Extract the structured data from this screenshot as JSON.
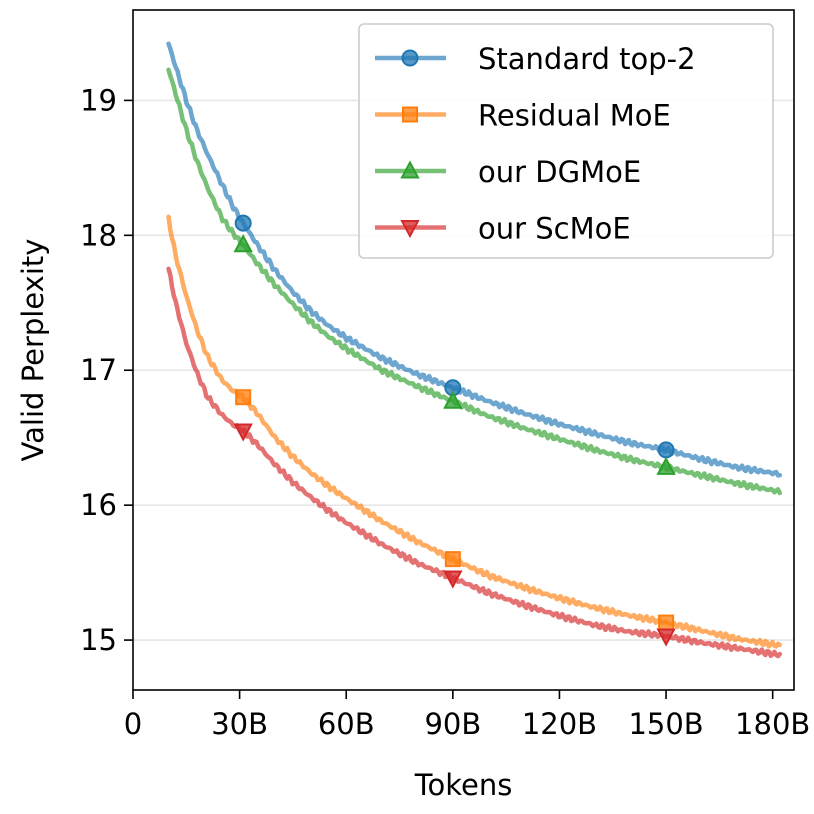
{
  "chart_data": {
    "type": "line",
    "title": "",
    "xlabel": "Tokens",
    "ylabel": "Valid Perplexity",
    "xlim": [
      0,
      186
    ],
    "ylim": [
      14.63,
      19.67
    ],
    "x_ticks": [
      {
        "value": 0,
        "label": "0"
      },
      {
        "value": 30,
        "label": "30B"
      },
      {
        "value": 60,
        "label": "60B"
      },
      {
        "value": 90,
        "label": "90B"
      },
      {
        "value": 120,
        "label": "120B"
      },
      {
        "value": 150,
        "label": "150B"
      },
      {
        "value": 180,
        "label": "180B"
      }
    ],
    "y_ticks": [
      {
        "value": 15,
        "label": "15"
      },
      {
        "value": 16,
        "label": "16"
      },
      {
        "value": 17,
        "label": "17"
      },
      {
        "value": 18,
        "label": "18"
      },
      {
        "value": 19,
        "label": "19"
      }
    ],
    "grid": "horizontal",
    "legend_position": "top-right",
    "marker_x": [
      31,
      90,
      150
    ],
    "series": [
      {
        "name": "Standard top-2",
        "color": "#1f77b4",
        "marker": "circle",
        "x": [
          10,
          12,
          15,
          18,
          21,
          25,
          28,
          31,
          35,
          40,
          45,
          50,
          55,
          60,
          70,
          80,
          90,
          100,
          110,
          120,
          130,
          140,
          150,
          160,
          170,
          182
        ],
        "y": [
          19.42,
          19.25,
          19.0,
          18.78,
          18.6,
          18.38,
          18.22,
          18.09,
          17.93,
          17.74,
          17.58,
          17.44,
          17.33,
          17.24,
          17.09,
          16.97,
          16.87,
          16.77,
          16.68,
          16.6,
          16.53,
          16.46,
          16.41,
          16.34,
          16.28,
          16.23
        ]
      },
      {
        "name": "Residual MoE",
        "color": "#ff7f0e",
        "marker": "square",
        "x": [
          10,
          12,
          15,
          18,
          21,
          25,
          28,
          31,
          35,
          40,
          45,
          50,
          55,
          60,
          70,
          80,
          90,
          100,
          110,
          120,
          130,
          140,
          150,
          160,
          170,
          182
        ],
        "y": [
          18.12,
          17.85,
          17.55,
          17.3,
          17.1,
          16.93,
          16.85,
          16.8,
          16.68,
          16.5,
          16.36,
          16.24,
          16.14,
          16.05,
          15.88,
          15.73,
          15.6,
          15.48,
          15.39,
          15.31,
          15.24,
          15.18,
          15.13,
          15.07,
          15.01,
          14.96
        ]
      },
      {
        "name": "our DGMoE",
        "color": "#2ca02c",
        "marker": "triangle-up",
        "x": [
          10,
          12,
          15,
          18,
          21,
          25,
          28,
          31,
          35,
          40,
          45,
          50,
          55,
          60,
          70,
          80,
          90,
          100,
          110,
          120,
          130,
          140,
          150,
          160,
          170,
          182
        ],
        "y": [
          19.23,
          19.05,
          18.78,
          18.55,
          18.35,
          18.13,
          18.02,
          17.93,
          17.79,
          17.63,
          17.49,
          17.36,
          17.25,
          17.16,
          17.0,
          16.88,
          16.77,
          16.66,
          16.57,
          16.49,
          16.41,
          16.34,
          16.28,
          16.22,
          16.16,
          16.1
        ]
      },
      {
        "name": "our ScMoE",
        "color": "#d62728",
        "marker": "triangle-down",
        "x": [
          10,
          12,
          15,
          18,
          21,
          25,
          28,
          31,
          35,
          40,
          45,
          50,
          55,
          60,
          70,
          80,
          90,
          100,
          110,
          120,
          130,
          140,
          150,
          160,
          170,
          182
        ],
        "y": [
          17.75,
          17.5,
          17.2,
          16.98,
          16.8,
          16.67,
          16.6,
          16.55,
          16.45,
          16.3,
          16.17,
          16.06,
          15.96,
          15.87,
          15.71,
          15.57,
          15.46,
          15.35,
          15.26,
          15.18,
          15.11,
          15.06,
          15.03,
          14.98,
          14.94,
          14.89
        ]
      }
    ]
  }
}
